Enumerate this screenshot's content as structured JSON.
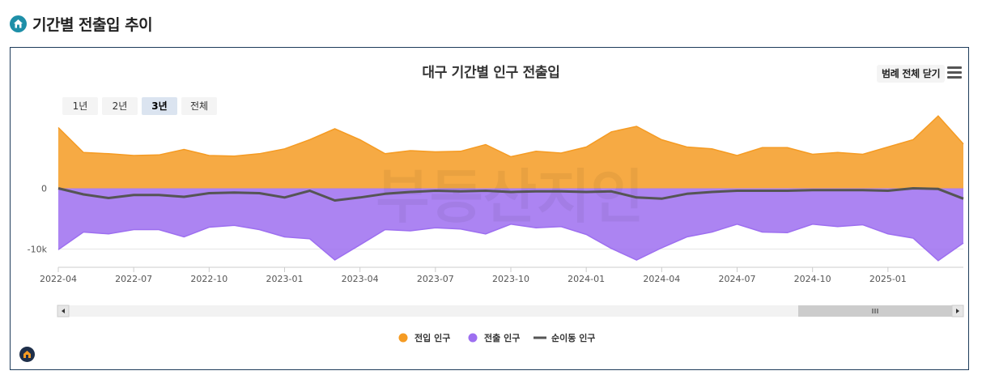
{
  "section": {
    "title": "기간별 전출입 추이"
  },
  "toolbar": {
    "legend_toggle_label": "범례 전체 닫기"
  },
  "range_buttons": [
    {
      "label": "1년",
      "active": false
    },
    {
      "label": "2년",
      "active": false
    },
    {
      "label": "3년",
      "active": true
    },
    {
      "label": "전체",
      "active": false
    }
  ],
  "watermark": "부동산지인",
  "colors": {
    "in": "#f59b23",
    "out": "#9d6ff0",
    "net": "#555555",
    "accent": "#1e8fa8"
  },
  "chart_data": {
    "type": "area",
    "title": "대구 기간별 인구 전출입",
    "xlabel": "",
    "ylabel": "",
    "ylim": [
      -13000,
      11000
    ],
    "y_ticks": [
      {
        "value": 0,
        "label": "0"
      },
      {
        "value": -10000,
        "label": "-10k"
      }
    ],
    "x_ticks": [
      "2022-04",
      "2022-07",
      "2022-10",
      "2023-01",
      "2023-04",
      "2023-07",
      "2023-10",
      "2024-01",
      "2024-04",
      "2024-07",
      "2024-10",
      "2025-01"
    ],
    "x": [
      "2022-04",
      "2022-05",
      "2022-06",
      "2022-07",
      "2022-08",
      "2022-09",
      "2022-10",
      "2022-11",
      "2022-12",
      "2023-01",
      "2023-02",
      "2023-03",
      "2023-04",
      "2023-05",
      "2023-06",
      "2023-07",
      "2023-08",
      "2023-09",
      "2023-10",
      "2023-11",
      "2023-12",
      "2024-01",
      "2024-02",
      "2024-03",
      "2024-04",
      "2024-05",
      "2024-06",
      "2024-07",
      "2024-08",
      "2024-09",
      "2024-10",
      "2024-11",
      "2024-12",
      "2025-01",
      "2025-02",
      "2025-03",
      "2025-04"
    ],
    "series": [
      {
        "name": "전입 인구",
        "key": "in",
        "values": [
          10000,
          5900,
          5700,
          5400,
          5500,
          6400,
          5400,
          5300,
          5700,
          6500,
          8000,
          9800,
          8000,
          5700,
          6200,
          6000,
          6100,
          7200,
          5200,
          6100,
          5800,
          6800,
          9300,
          10200,
          8000,
          6800,
          6500,
          5400,
          6700,
          6700,
          5600,
          5900,
          5600,
          6800,
          8000,
          11900,
          7300
        ]
      },
      {
        "name": "전출 인구",
        "key": "out",
        "values": [
          -10100,
          -7200,
          -7500,
          -6800,
          -6800,
          -8000,
          -6400,
          -6100,
          -6800,
          -8000,
          -8300,
          -11800,
          -9300,
          -6800,
          -7000,
          -6500,
          -6700,
          -7500,
          -5900,
          -6500,
          -6300,
          -7600,
          -9900,
          -11800,
          -9800,
          -8000,
          -7200,
          -5900,
          -7200,
          -7300,
          -5900,
          -6300,
          -6000,
          -7500,
          -8200,
          -11900,
          -9000
        ]
      },
      {
        "name": "순이동 인구",
        "key": "net",
        "values": [
          0,
          -1000,
          -1600,
          -1100,
          -1100,
          -1400,
          -800,
          -700,
          -800,
          -1500,
          -400,
          -2000,
          -1500,
          -900,
          -600,
          -400,
          -500,
          -400,
          -600,
          -500,
          -500,
          -600,
          -500,
          -1500,
          -1700,
          -900,
          -600,
          -400,
          -400,
          -400,
          -300,
          -300,
          -300,
          -400,
          0,
          -100,
          -1700
        ]
      }
    ]
  }
}
